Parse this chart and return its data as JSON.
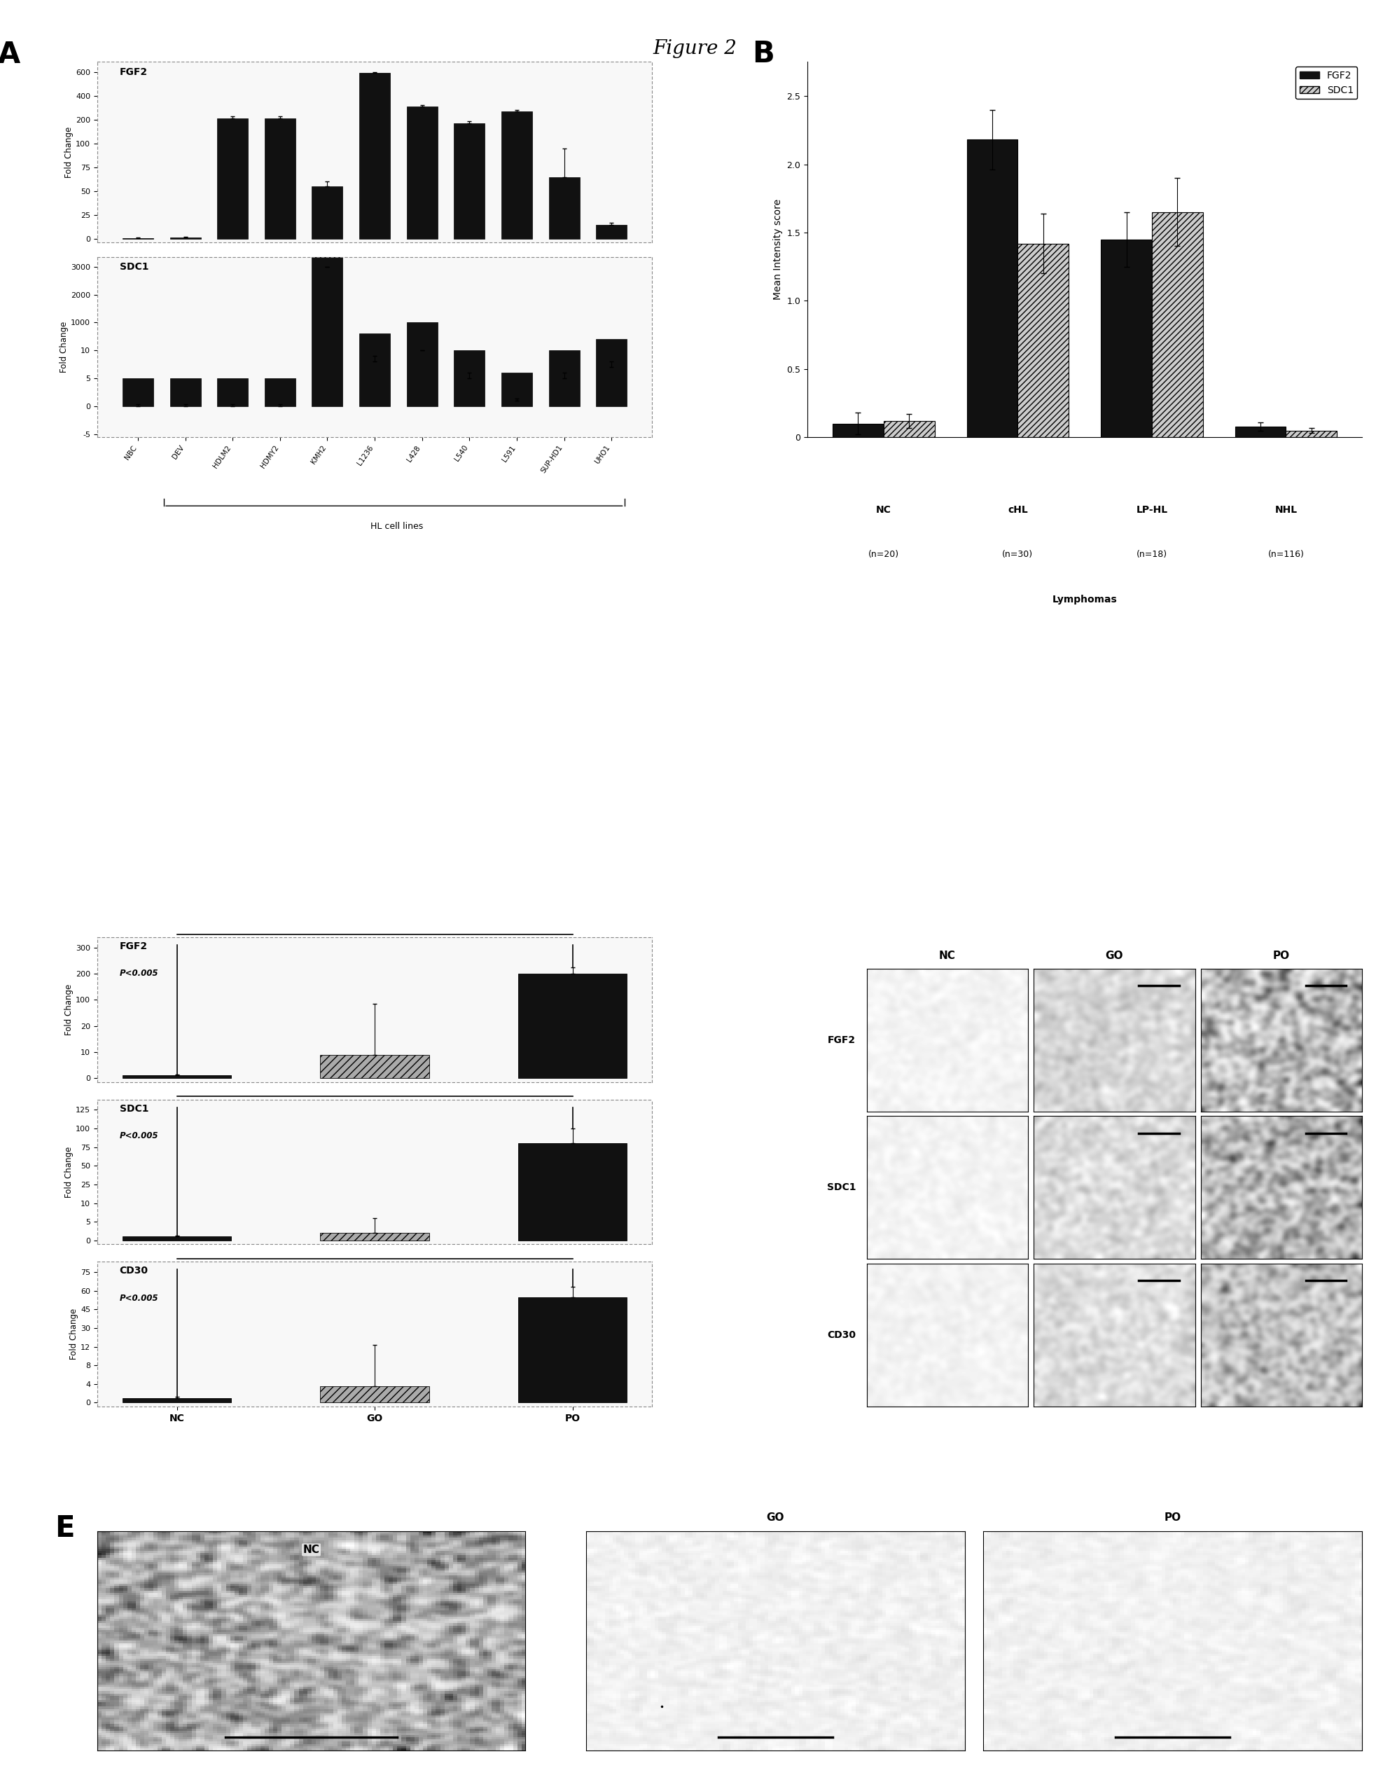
{
  "title": "Figure 2",
  "panel_A_FGF2": {
    "categories": [
      "NBC",
      "DEV",
      "HDLM2",
      "HDMY2",
      "KMH2",
      "L1236",
      "L428",
      "L540",
      "L591",
      "SUP-HD1",
      "UHO1"
    ],
    "values": [
      1,
      2,
      210,
      210,
      55,
      590,
      310,
      185,
      270,
      65,
      15
    ],
    "errors": [
      0.5,
      0.5,
      20,
      20,
      5,
      30,
      15,
      10,
      10,
      30,
      2
    ],
    "ytick_positions": [
      0,
      25,
      50,
      75,
      100,
      200,
      400,
      600
    ],
    "ytick_labels": [
      "0",
      "25",
      "50",
      "75",
      "100",
      "200",
      "400",
      "600"
    ],
    "ylabel": "Fold Change",
    "title": "FGF2",
    "color": "#111111",
    "ymax": 650
  },
  "panel_A_SDC1": {
    "categories": [
      "NBC",
      "DEV",
      "HDLM2",
      "HDMY2",
      "KMH2",
      "L1236",
      "L428",
      "L540",
      "L591",
      "SUP-HD1",
      "UHO1"
    ],
    "values": [
      0,
      0,
      0,
      0,
      3000,
      8,
      15,
      5,
      1,
      5,
      7
    ],
    "errors": [
      0.3,
      0.3,
      0.3,
      0.3,
      200,
      1,
      2,
      1,
      0.3,
      1,
      1
    ],
    "ytick_positions": [
      -5,
      0,
      5,
      10,
      1000,
      2000,
      3000
    ],
    "ytick_labels": [
      "-5",
      "0",
      "5",
      "10",
      "1000",
      "2000",
      "3000"
    ],
    "ylabel": "Fold Change",
    "title": "SDC1",
    "color": "#111111",
    "ymin": -8,
    "ymax": 3300
  },
  "panel_B": {
    "group_labels": [
      "NC",
      "cHL",
      "LP-HL",
      "NHL"
    ],
    "group_sublabels": [
      "(n=20)",
      "(n=30)",
      "(n=18)",
      "(n=116)"
    ],
    "FGF2_values": [
      0.1,
      2.18,
      1.45,
      0.08
    ],
    "FGF2_errors": [
      0.08,
      0.22,
      0.2,
      0.03
    ],
    "SDC1_values": [
      0.12,
      1.42,
      1.65,
      0.05
    ],
    "SDC1_errors": [
      0.05,
      0.22,
      0.25,
      0.02
    ],
    "xlabel": "Lymphomas",
    "ylabel": "Mean Intensity score",
    "ylim": [
      0,
      2.75
    ],
    "yticks": [
      0.0,
      0.5,
      1.0,
      1.5,
      2.0,
      2.5
    ],
    "bar_width": 0.38
  },
  "panel_C_FGF2": {
    "categories": [
      "NC",
      "GO",
      "PO"
    ],
    "values": [
      1,
      9,
      200
    ],
    "errors": [
      0.5,
      80,
      25
    ],
    "ytick_positions": [
      0,
      10,
      20,
      100,
      200,
      300
    ],
    "ytick_labels": [
      "0",
      "10",
      "20",
      "100",
      "200",
      "300"
    ],
    "ylabel": "Fold Change",
    "title": "FGF2",
    "pvalue": "P<0.005",
    "ymax": 330,
    "bar_colors": [
      "#111111",
      "#aaaaaa",
      "#111111"
    ],
    "hatch": [
      null,
      "///",
      null
    ]
  },
  "panel_C_SDC1": {
    "categories": [
      "NC",
      "GO",
      "PO"
    ],
    "values": [
      1,
      2,
      80
    ],
    "errors": [
      0.3,
      4,
      20
    ],
    "ytick_positions": [
      0,
      5,
      10,
      25,
      50,
      75,
      100,
      125
    ],
    "ytick_labels": [
      "0",
      "5",
      "10",
      "25",
      "50",
      "75",
      "100",
      "125"
    ],
    "ylabel": "Fold Change",
    "title": "SDC1",
    "pvalue": "P<0.005",
    "ymax": 140,
    "bar_colors": [
      "#111111",
      "#aaaaaa",
      "#111111"
    ],
    "hatch": [
      null,
      "///",
      null
    ]
  },
  "panel_C_CD30": {
    "categories": [
      "NC",
      "GO",
      "PO"
    ],
    "values": [
      1,
      3.5,
      55
    ],
    "errors": [
      0.3,
      10,
      8
    ],
    "ytick_positions": [
      0,
      4,
      8,
      12,
      30,
      45,
      60,
      75
    ],
    "ytick_labels": [
      "0",
      "4",
      "8",
      "12",
      "30",
      "45",
      "60",
      "75"
    ],
    "ylabel": "Fold Change",
    "title": "CD30",
    "pvalue": "P<0.005",
    "ymax": 82,
    "bar_colors": [
      "#111111",
      "#aaaaaa",
      "#111111"
    ],
    "hatch": [
      null,
      "///",
      null
    ]
  },
  "bg_color": "#ffffff",
  "text_color": "#000000"
}
